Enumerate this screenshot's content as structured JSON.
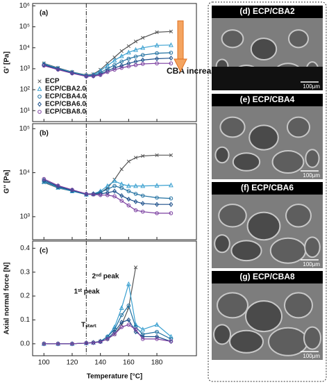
{
  "chart_data": [
    {
      "type": "line",
      "label": "(a)",
      "ylabel": "G' [Pa]",
      "log_y": true,
      "xlim": [
        92,
        208
      ],
      "xticks": [
        100,
        120,
        140,
        160,
        180
      ],
      "ylim": [
        3,
        1300000
      ],
      "yticks": [
        {
          "value": 10,
          "label": "10¹"
        },
        {
          "value": 100,
          "label": "10²"
        },
        {
          "value": 1000,
          "label": "10³"
        },
        {
          "value": 10000,
          "label": "10⁴"
        },
        {
          "value": 100000,
          "label": "10⁵"
        },
        {
          "value": 1000000,
          "label": "10⁶"
        }
      ],
      "vline": 130,
      "legend": "lower left",
      "annotations": [
        "CBA increase"
      ],
      "x": [
        100,
        110,
        120,
        130,
        135,
        140,
        145,
        150,
        155,
        160,
        165,
        170,
        180,
        190
      ],
      "series": [
        {
          "name": "ECP",
          "color": "#555555",
          "marker": "x",
          "values": [
            1800,
            1100,
            700,
            500,
            550,
            900,
            1800,
            3500,
            7000,
            12000,
            20000,
            30000,
            55000,
            60000
          ]
        },
        {
          "name": "ECP/CBA2.0",
          "color": "#3aa0d0",
          "marker": "triangle",
          "values": [
            1700,
            1050,
            680,
            480,
            520,
            800,
            1400,
            2500,
            4000,
            6000,
            8000,
            10000,
            13000,
            13500
          ]
        },
        {
          "name": "ECP/CBA4.0",
          "color": "#1f6fa0",
          "marker": "circle",
          "values": [
            1600,
            1000,
            650,
            460,
            480,
            650,
            1000,
            1500,
            2200,
            3000,
            3800,
            4500,
            5500,
            5800
          ]
        },
        {
          "name": "ECP/CBA6.0",
          "color": "#1c4f8a",
          "marker": "diamond",
          "values": [
            1500,
            950,
            620,
            440,
            450,
            550,
            800,
            1100,
            1400,
            1800,
            2200,
            2600,
            3000,
            3200
          ]
        },
        {
          "name": "ECP/CBA8.0",
          "color": "#7b3fa0",
          "marker": "circle",
          "values": [
            1400,
            900,
            600,
            430,
            440,
            500,
            700,
            900,
            1100,
            1300,
            1500,
            1700,
            1800,
            1800
          ]
        }
      ]
    },
    {
      "type": "line",
      "label": "(b)",
      "ylabel": "G'' [Pa]",
      "log_y": true,
      "xlim": [
        92,
        208
      ],
      "xticks": [
        100,
        120,
        140,
        160,
        180
      ],
      "ylim": [
        300,
        130000
      ],
      "yticks": [
        {
          "value": 1000,
          "label": "10³"
        },
        {
          "value": 10000,
          "label": "10⁴"
        },
        {
          "value": 100000,
          "label": "10⁵"
        }
      ],
      "vline": 130,
      "x": [
        100,
        110,
        120,
        130,
        135,
        140,
        145,
        150,
        155,
        160,
        165,
        170,
        180,
        190
      ],
      "series": [
        {
          "color": "#555555",
          "marker": "x",
          "values": [
            6000,
            4500,
            3800,
            3200,
            3200,
            3500,
            4500,
            7000,
            12000,
            18000,
            22000,
            24000,
            25000,
            25000
          ]
        },
        {
          "color": "#3aa0d0",
          "marker": "triangle",
          "values": [
            6200,
            4600,
            3800,
            3200,
            3300,
            3800,
            5000,
            6500,
            5500,
            5000,
            5000,
            5000,
            5100,
            5200
          ]
        },
        {
          "color": "#1f6fa0",
          "marker": "circle",
          "values": [
            6400,
            4700,
            3900,
            3200,
            3300,
            3600,
            4200,
            5000,
            4500,
            3800,
            3300,
            3000,
            2700,
            2600
          ]
        },
        {
          "color": "#1c4f8a",
          "marker": "diamond",
          "values": [
            6800,
            4900,
            4000,
            3300,
            3300,
            3300,
            3500,
            3800,
            3000,
            2500,
            2200,
            2000,
            1900,
            1900
          ]
        },
        {
          "color": "#7b3fa0",
          "marker": "circle",
          "values": [
            7200,
            5100,
            4100,
            3300,
            3200,
            3100,
            3100,
            2900,
            2300,
            1800,
            1400,
            1300,
            1200,
            1200
          ]
        }
      ]
    },
    {
      "type": "line",
      "label": "(c)",
      "ylabel": "Axial normal force [N]",
      "xlabel": "Temperature [°C]",
      "log_y": false,
      "xlim": [
        92,
        208
      ],
      "xticks": [
        100,
        120,
        140,
        160,
        180
      ],
      "ylim": [
        -0.05,
        0.43
      ],
      "yticks": [
        {
          "value": 0,
          "label": "0.0"
        },
        0.1,
        0.2,
        0.3,
        0.4
      ],
      "vline": 130,
      "annotations": [
        "1ˢᵗ peak",
        "2ⁿᵈ peak",
        "Tₛₜₐᵣₜ"
      ],
      "x": [
        100,
        110,
        120,
        130,
        135,
        140,
        145,
        150,
        155,
        160,
        165,
        170,
        180,
        190
      ],
      "series": [
        {
          "color": "#555555",
          "marker": "x",
          "values": [
            0,
            0,
            0,
            0.003,
            0.005,
            0.01,
            0.02,
            0.04,
            0.08,
            0.15,
            0.32,
            null,
            null,
            null
          ]
        },
        {
          "color": "#3aa0d0",
          "marker": "triangle",
          "values": [
            0,
            0,
            0,
            0.003,
            0.005,
            0.01,
            0.03,
            0.07,
            0.15,
            0.25,
            0.08,
            0.06,
            0.08,
            0.03
          ]
        },
        {
          "color": "#1f6fa0",
          "marker": "circle",
          "values": [
            0,
            0,
            0,
            0.003,
            0.005,
            0.01,
            0.03,
            0.06,
            0.12,
            0.16,
            0.07,
            0.04,
            0.05,
            0.02
          ]
        },
        {
          "color": "#1c4f8a",
          "marker": "diamond",
          "values": [
            0,
            0,
            0,
            0.003,
            0.005,
            0.01,
            0.02,
            0.05,
            0.09,
            0.1,
            0.05,
            0.03,
            0.03,
            0.01
          ]
        },
        {
          "color": "#7b3fa0",
          "marker": "circle",
          "values": [
            0,
            0,
            0,
            0.003,
            0.004,
            0.008,
            0.02,
            0.04,
            0.07,
            0.08,
            0.06,
            0.02,
            0.02,
            0.01
          ]
        }
      ]
    }
  ],
  "images": [
    {
      "title": "(d) ECP/CBA2",
      "scale": "100μm"
    },
    {
      "title": "(e) ECP/CBA4",
      "scale": "100μm"
    },
    {
      "title": "(f) ECP/CBA6",
      "scale": "100μm"
    },
    {
      "title": "(g) ECP/CBA8",
      "scale": "100μm"
    }
  ]
}
